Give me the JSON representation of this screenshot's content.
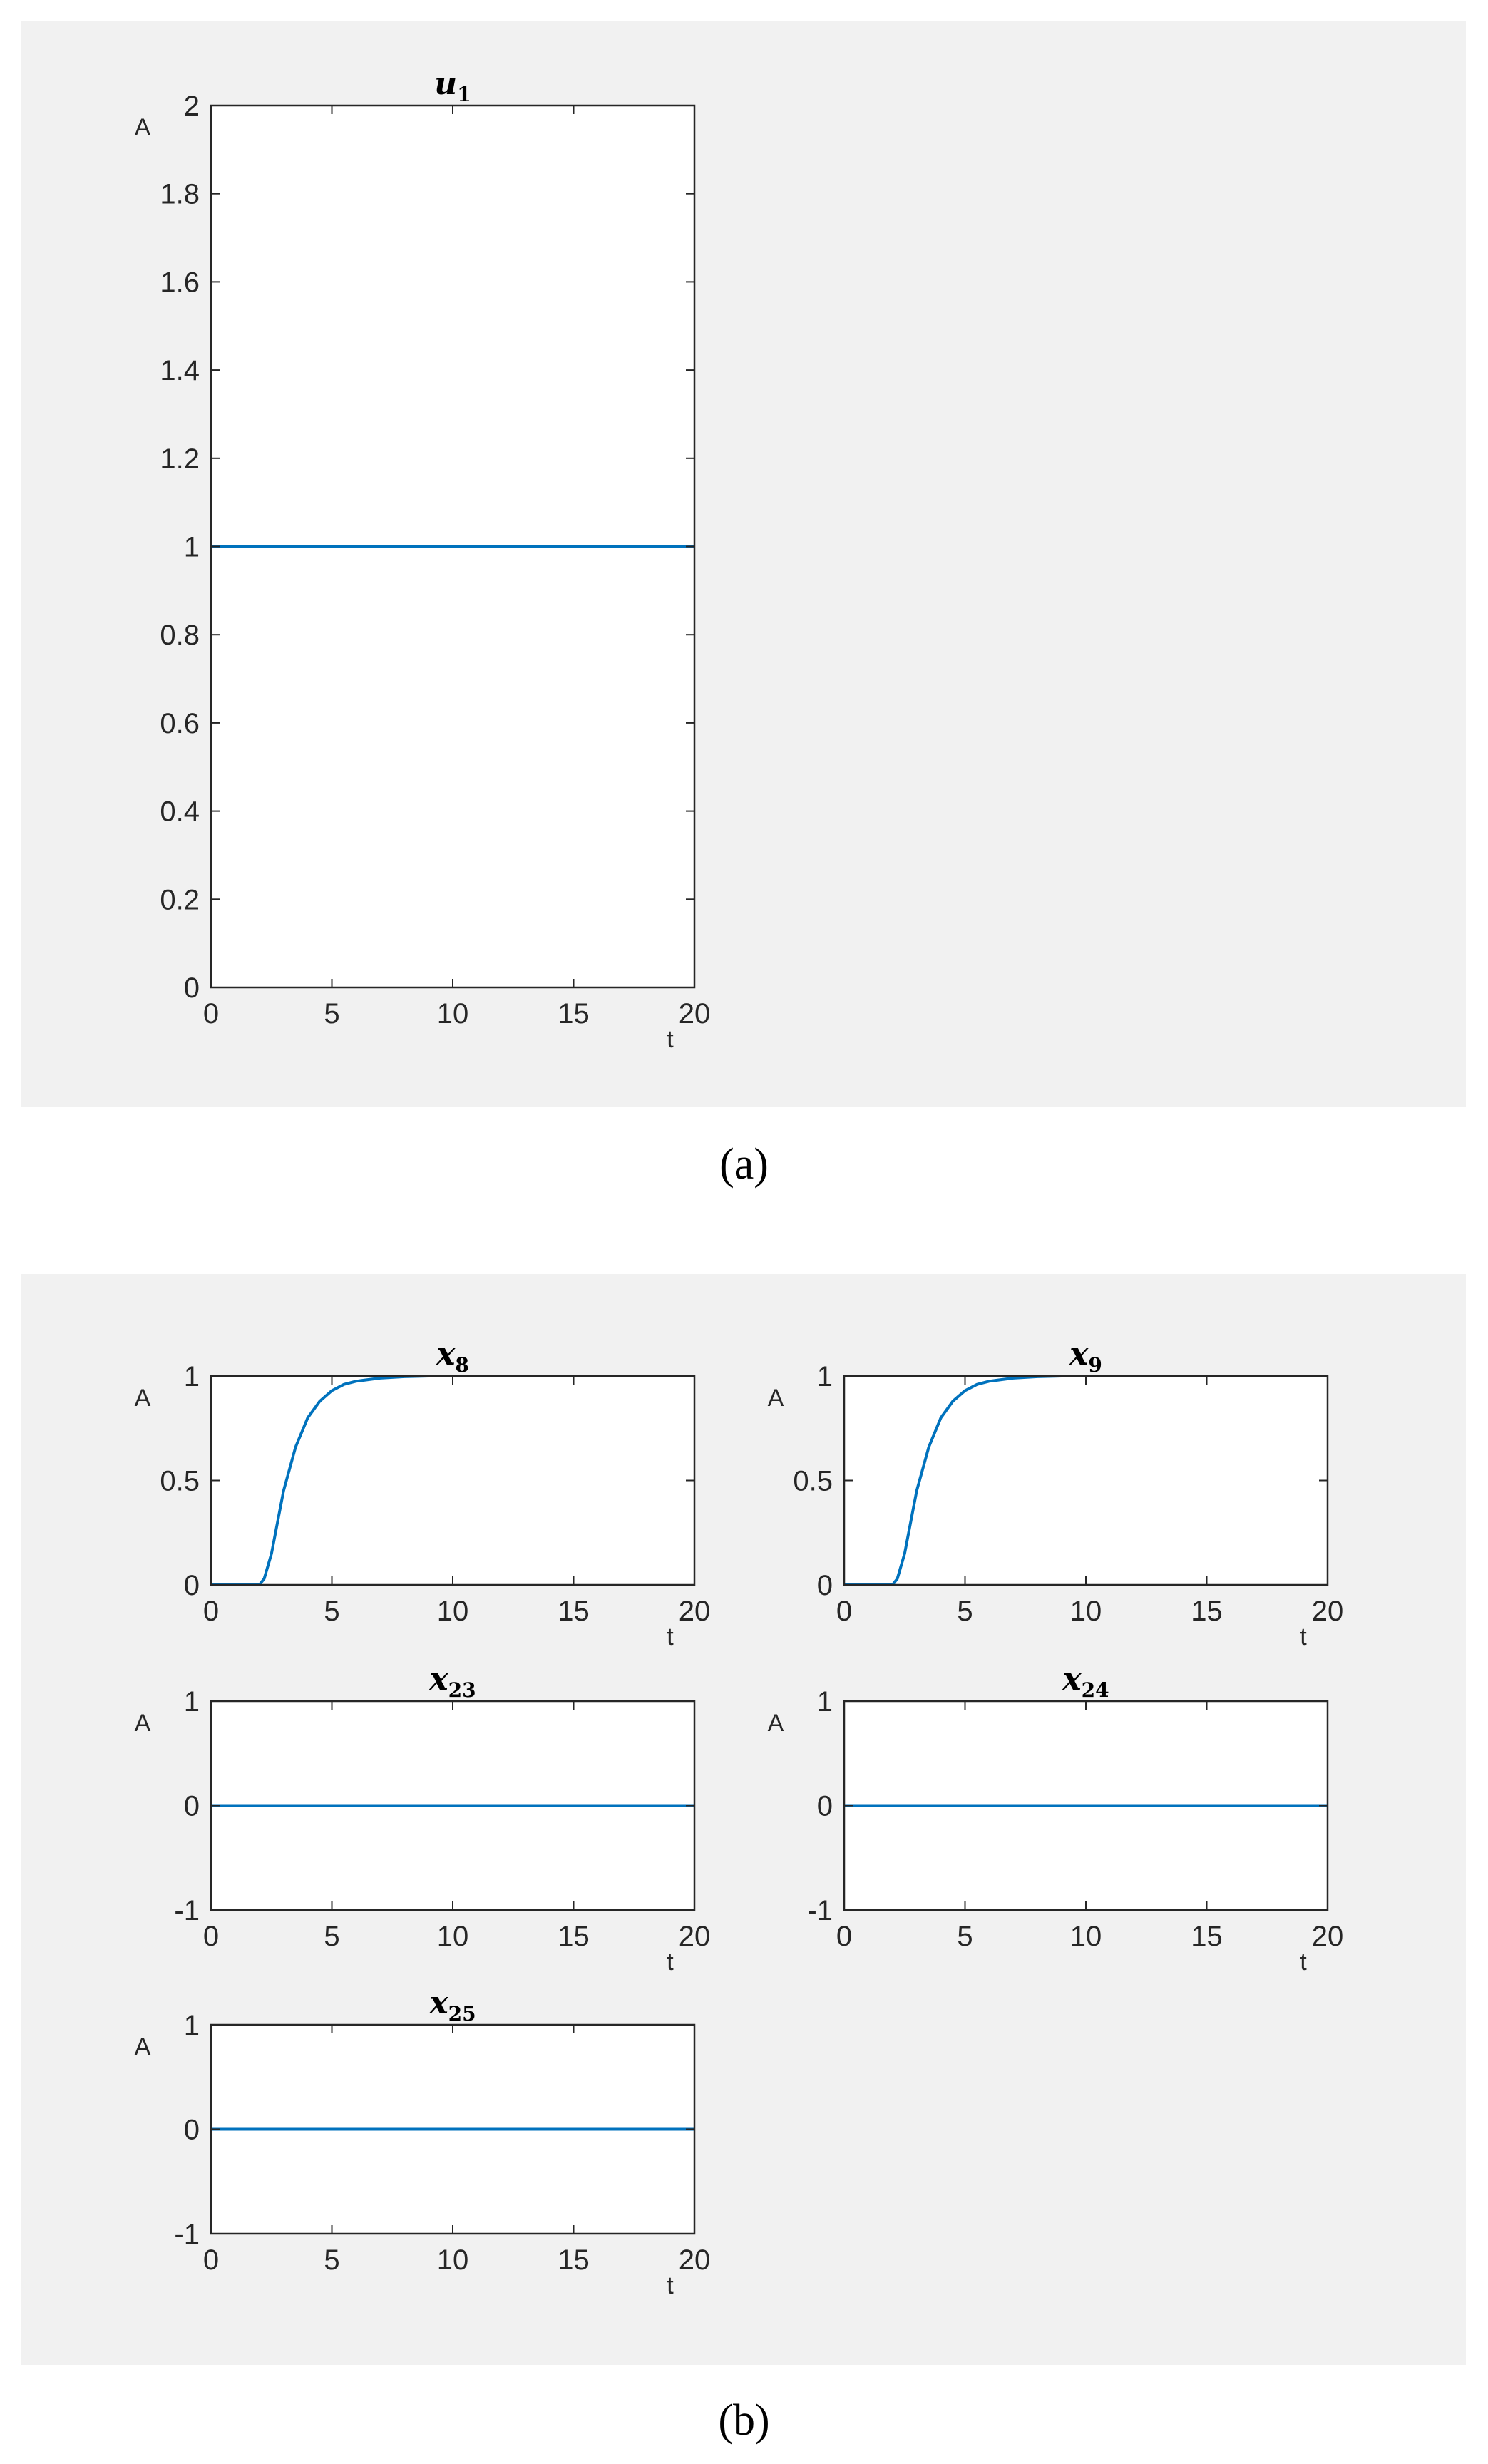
{
  "captions": {
    "a": "(a)",
    "b": "(b)"
  },
  "colors": {
    "line": "#0072bd",
    "panel_bg": "#f1f1f1",
    "axes_bg": "#ffffff",
    "axis": "#262626"
  },
  "chart_data": [
    {
      "type": "line",
      "panel": "a",
      "title": {
        "base": "u",
        "sub": "1"
      },
      "xlabel": "t",
      "ylabel": "A",
      "xlim": [
        0,
        20
      ],
      "ylim": [
        0,
        2
      ],
      "xticks": [
        0,
        5,
        10,
        15,
        20
      ],
      "yticks": [
        0,
        0.2,
        0.4,
        0.6,
        0.8,
        1,
        1.2,
        1.4,
        1.6,
        1.8,
        2
      ],
      "series": [
        {
          "x": [
            0,
            20
          ],
          "y": [
            1,
            1
          ]
        }
      ]
    },
    {
      "type": "line",
      "panel": "b",
      "title": {
        "base": "x",
        "sub": "8"
      },
      "xlabel": "t",
      "ylabel": "A",
      "xlim": [
        0,
        20
      ],
      "ylim": [
        0,
        1
      ],
      "xticks": [
        0,
        5,
        10,
        15,
        20
      ],
      "yticks": [
        0,
        0.5,
        1
      ],
      "series": [
        {
          "x": [
            0,
            2,
            2.2,
            2.5,
            3,
            3.5,
            4,
            4.5,
            5,
            5.5,
            6,
            7,
            8,
            9,
            10,
            12,
            15,
            20
          ],
          "y": [
            0,
            0,
            0.03,
            0.15,
            0.45,
            0.66,
            0.8,
            0.88,
            0.93,
            0.96,
            0.975,
            0.99,
            0.997,
            1,
            1,
            1,
            1,
            1
          ]
        }
      ]
    },
    {
      "type": "line",
      "panel": "b",
      "title": {
        "base": "x",
        "sub": "9"
      },
      "xlabel": "t",
      "ylabel": "A",
      "xlim": [
        0,
        20
      ],
      "ylim": [
        0,
        1
      ],
      "xticks": [
        0,
        5,
        10,
        15,
        20
      ],
      "yticks": [
        0,
        0.5,
        1
      ],
      "series": [
        {
          "x": [
            0,
            2,
            2.2,
            2.5,
            3,
            3.5,
            4,
            4.5,
            5,
            5.5,
            6,
            7,
            8,
            9,
            10,
            12,
            15,
            20
          ],
          "y": [
            0,
            0,
            0.03,
            0.15,
            0.45,
            0.66,
            0.8,
            0.88,
            0.93,
            0.96,
            0.975,
            0.99,
            0.997,
            1,
            1,
            1,
            1,
            1
          ]
        }
      ]
    },
    {
      "type": "line",
      "panel": "b",
      "title": {
        "base": "x",
        "sub": "23"
      },
      "xlabel": "t",
      "ylabel": "A",
      "xlim": [
        0,
        20
      ],
      "ylim": [
        -1,
        1
      ],
      "xticks": [
        0,
        5,
        10,
        15,
        20
      ],
      "yticks": [
        -1,
        0,
        1
      ],
      "series": [
        {
          "x": [
            0,
            20
          ],
          "y": [
            0,
            0
          ]
        }
      ]
    },
    {
      "type": "line",
      "panel": "b",
      "title": {
        "base": "x",
        "sub": "24"
      },
      "xlabel": "t",
      "ylabel": "A",
      "xlim": [
        0,
        20
      ],
      "ylim": [
        -1,
        1
      ],
      "xticks": [
        0,
        5,
        10,
        15,
        20
      ],
      "yticks": [
        -1,
        0,
        1
      ],
      "series": [
        {
          "x": [
            0,
            20
          ],
          "y": [
            0,
            0
          ]
        }
      ]
    },
    {
      "type": "line",
      "panel": "b",
      "title": {
        "base": "x",
        "sub": "25"
      },
      "xlabel": "t",
      "ylabel": "A",
      "xlim": [
        0,
        20
      ],
      "ylim": [
        -1,
        1
      ],
      "xticks": [
        0,
        5,
        10,
        15,
        20
      ],
      "yticks": [
        -1,
        0,
        1
      ],
      "series": [
        {
          "x": [
            0,
            20
          ],
          "y": [
            0,
            0
          ]
        }
      ]
    }
  ]
}
